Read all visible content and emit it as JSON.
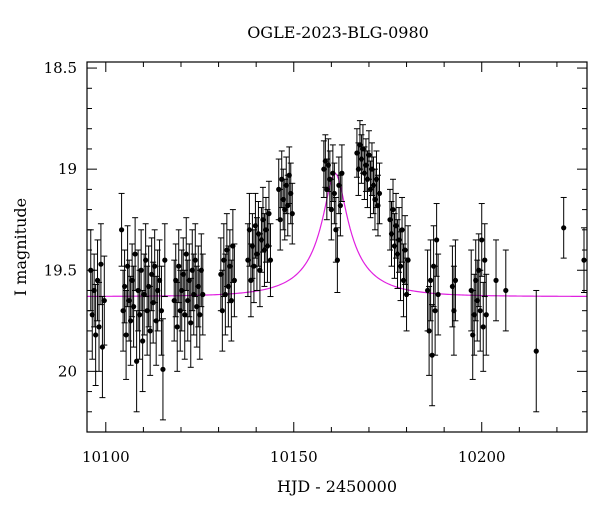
{
  "chart_data": {
    "type": "scatter",
    "title": "OGLE-2023-BLG-0980",
    "xlabel": "HJD - 2450000",
    "ylabel": "I magnitude",
    "xlim": [
      10095,
      10228
    ],
    "ylim": [
      20.3,
      18.47
    ],
    "y_inverted": true,
    "grid": false,
    "x_ticks": [
      10100,
      10150,
      10200
    ],
    "y_ticks": [
      18.5,
      19,
      19.5,
      20
    ],
    "x_tick_labels": [
      "10100",
      "10150",
      "10200"
    ],
    "y_tick_labels": [
      "18.5",
      "19",
      "19.5",
      "20"
    ],
    "colors": {
      "data": "#000000",
      "model": "#e020e0"
    },
    "series": [
      {
        "kind": "points_with_errorbars",
        "points": [
          {
            "x": 10096.0,
            "y": 19.5,
            "e": 0.2
          },
          {
            "x": 10096.4,
            "y": 19.72,
            "e": 0.22
          },
          {
            "x": 10096.9,
            "y": 19.6,
            "e": 0.18
          },
          {
            "x": 10097.3,
            "y": 19.82,
            "e": 0.25
          },
          {
            "x": 10097.8,
            "y": 19.55,
            "e": 0.2
          },
          {
            "x": 10098.2,
            "y": 19.78,
            "e": 0.22
          },
          {
            "x": 10098.7,
            "y": 19.47,
            "e": 0.2
          },
          {
            "x": 10099.1,
            "y": 19.88,
            "e": 0.25
          },
          {
            "x": 10099.6,
            "y": 19.65,
            "e": 0.22
          },
          {
            "x": 10104.2,
            "y": 19.3,
            "e": 0.18
          },
          {
            "x": 10104.6,
            "y": 19.7,
            "e": 0.2
          },
          {
            "x": 10105.0,
            "y": 19.58,
            "e": 0.18
          },
          {
            "x": 10105.4,
            "y": 19.82,
            "e": 0.22
          },
          {
            "x": 10105.8,
            "y": 19.48,
            "e": 0.2
          },
          {
            "x": 10106.2,
            "y": 19.65,
            "e": 0.2
          },
          {
            "x": 10106.6,
            "y": 19.75,
            "e": 0.22
          },
          {
            "x": 10107.0,
            "y": 19.55,
            "e": 0.18
          },
          {
            "x": 10107.4,
            "y": 19.68,
            "e": 0.2
          },
          {
            "x": 10107.8,
            "y": 19.42,
            "e": 0.18
          },
          {
            "x": 10108.2,
            "y": 19.95,
            "e": 0.25
          },
          {
            "x": 10108.6,
            "y": 19.6,
            "e": 0.2
          },
          {
            "x": 10109.0,
            "y": 19.72,
            "e": 0.22
          },
          {
            "x": 10109.4,
            "y": 19.5,
            "e": 0.2
          },
          {
            "x": 10109.8,
            "y": 19.85,
            "e": 0.25
          },
          {
            "x": 10110.2,
            "y": 19.62,
            "e": 0.2
          },
          {
            "x": 10110.6,
            "y": 19.45,
            "e": 0.18
          },
          {
            "x": 10111.0,
            "y": 19.7,
            "e": 0.22
          },
          {
            "x": 10111.4,
            "y": 19.58,
            "e": 0.2
          },
          {
            "x": 10111.8,
            "y": 19.8,
            "e": 0.22
          },
          {
            "x": 10112.2,
            "y": 19.52,
            "e": 0.18
          },
          {
            "x": 10112.6,
            "y": 19.66,
            "e": 0.2
          },
          {
            "x": 10113.0,
            "y": 19.48,
            "e": 0.18
          },
          {
            "x": 10113.4,
            "y": 19.75,
            "e": 0.22
          },
          {
            "x": 10113.8,
            "y": 19.6,
            "e": 0.2
          },
          {
            "x": 10114.3,
            "y": 19.55,
            "e": 0.2
          },
          {
            "x": 10114.8,
            "y": 19.7,
            "e": 0.22
          },
          {
            "x": 10115.2,
            "y": 19.99,
            "e": 0.25
          },
          {
            "x": 10115.7,
            "y": 19.45,
            "e": 0.18
          },
          {
            "x": 10118.2,
            "y": 19.65,
            "e": 0.2
          },
          {
            "x": 10118.6,
            "y": 19.55,
            "e": 0.18
          },
          {
            "x": 10119.0,
            "y": 19.78,
            "e": 0.22
          },
          {
            "x": 10119.4,
            "y": 19.48,
            "e": 0.18
          },
          {
            "x": 10119.8,
            "y": 19.7,
            "e": 0.2
          },
          {
            "x": 10120.2,
            "y": 19.6,
            "e": 0.2
          },
          {
            "x": 10120.6,
            "y": 19.52,
            "e": 0.18
          },
          {
            "x": 10121.0,
            "y": 19.72,
            "e": 0.22
          },
          {
            "x": 10121.4,
            "y": 19.42,
            "e": 0.18
          },
          {
            "x": 10121.8,
            "y": 19.65,
            "e": 0.2
          },
          {
            "x": 10122.2,
            "y": 19.55,
            "e": 0.18
          },
          {
            "x": 10122.6,
            "y": 19.76,
            "e": 0.22
          },
          {
            "x": 10123.0,
            "y": 19.5,
            "e": 0.2
          },
          {
            "x": 10123.4,
            "y": 19.62,
            "e": 0.2
          },
          {
            "x": 10123.8,
            "y": 19.45,
            "e": 0.18
          },
          {
            "x": 10124.2,
            "y": 19.68,
            "e": 0.2
          },
          {
            "x": 10124.6,
            "y": 19.58,
            "e": 0.2
          },
          {
            "x": 10125.0,
            "y": 19.72,
            "e": 0.22
          },
          {
            "x": 10125.4,
            "y": 19.5,
            "e": 0.18
          },
          {
            "x": 10125.8,
            "y": 19.62,
            "e": 0.2
          },
          {
            "x": 10130.6,
            "y": 19.52,
            "e": 0.18
          },
          {
            "x": 10131.0,
            "y": 19.7,
            "e": 0.2
          },
          {
            "x": 10131.4,
            "y": 19.45,
            "e": 0.18
          },
          {
            "x": 10131.8,
            "y": 19.62,
            "e": 0.2
          },
          {
            "x": 10132.2,
            "y": 19.4,
            "e": 0.18
          },
          {
            "x": 10132.6,
            "y": 19.58,
            "e": 0.2
          },
          {
            "x": 10133.0,
            "y": 19.48,
            "e": 0.18
          },
          {
            "x": 10133.4,
            "y": 19.65,
            "e": 0.2
          },
          {
            "x": 10133.8,
            "y": 19.38,
            "e": 0.18
          },
          {
            "x": 10134.2,
            "y": 19.55,
            "e": 0.18
          },
          {
            "x": 10137.8,
            "y": 19.45,
            "e": 0.18
          },
          {
            "x": 10138.2,
            "y": 19.3,
            "e": 0.18
          },
          {
            "x": 10138.6,
            "y": 19.55,
            "e": 0.18
          },
          {
            "x": 10139.0,
            "y": 19.38,
            "e": 0.16
          },
          {
            "x": 10139.4,
            "y": 19.48,
            "e": 0.18
          },
          {
            "x": 10139.8,
            "y": 19.28,
            "e": 0.16
          },
          {
            "x": 10140.2,
            "y": 19.42,
            "e": 0.18
          },
          {
            "x": 10140.6,
            "y": 19.32,
            "e": 0.16
          },
          {
            "x": 10141.0,
            "y": 19.5,
            "e": 0.18
          },
          {
            "x": 10141.4,
            "y": 19.35,
            "e": 0.16
          },
          {
            "x": 10141.8,
            "y": 19.25,
            "e": 0.16
          },
          {
            "x": 10142.2,
            "y": 19.4,
            "e": 0.18
          },
          {
            "x": 10142.6,
            "y": 19.3,
            "e": 0.16
          },
          {
            "x": 10143.0,
            "y": 19.38,
            "e": 0.18
          },
          {
            "x": 10143.4,
            "y": 19.22,
            "e": 0.16
          },
          {
            "x": 10143.8,
            "y": 19.45,
            "e": 0.18
          },
          {
            "x": 10146.0,
            "y": 19.1,
            "e": 0.15
          },
          {
            "x": 10146.4,
            "y": 19.25,
            "e": 0.15
          },
          {
            "x": 10146.8,
            "y": 19.05,
            "e": 0.14
          },
          {
            "x": 10147.2,
            "y": 19.15,
            "e": 0.15
          },
          {
            "x": 10147.6,
            "y": 19.2,
            "e": 0.15
          },
          {
            "x": 10148.0,
            "y": 19.08,
            "e": 0.14
          },
          {
            "x": 10148.4,
            "y": 19.18,
            "e": 0.15
          },
          {
            "x": 10148.8,
            "y": 19.03,
            "e": 0.14
          },
          {
            "x": 10149.2,
            "y": 19.12,
            "e": 0.15
          },
          {
            "x": 10149.6,
            "y": 19.22,
            "e": 0.15
          },
          {
            "x": 10158.0,
            "y": 19.0,
            "e": 0.14
          },
          {
            "x": 10158.4,
            "y": 18.96,
            "e": 0.13
          },
          {
            "x": 10158.8,
            "y": 19.1,
            "e": 0.15
          },
          {
            "x": 10159.2,
            "y": 18.98,
            "e": 0.13
          },
          {
            "x": 10159.6,
            "y": 19.05,
            "e": 0.14
          },
          {
            "x": 10160.0,
            "y": 19.2,
            "e": 0.15
          },
          {
            "x": 10160.4,
            "y": 19.02,
            "e": 0.14
          },
          {
            "x": 10160.8,
            "y": 19.12,
            "e": 0.15
          },
          {
            "x": 10161.2,
            "y": 19.3,
            "e": 0.16
          },
          {
            "x": 10161.6,
            "y": 19.45,
            "e": 0.16
          },
          {
            "x": 10162.0,
            "y": 19.08,
            "e": 0.14
          },
          {
            "x": 10162.4,
            "y": 19.18,
            "e": 0.15
          },
          {
            "x": 10162.8,
            "y": 19.02,
            "e": 0.14
          },
          {
            "x": 10166.8,
            "y": 18.92,
            "e": 0.12
          },
          {
            "x": 10167.2,
            "y": 19.0,
            "e": 0.13
          },
          {
            "x": 10167.6,
            "y": 18.88,
            "e": 0.12
          },
          {
            "x": 10168.0,
            "y": 18.95,
            "e": 0.12
          },
          {
            "x": 10168.4,
            "y": 18.9,
            "e": 0.12
          },
          {
            "x": 10168.8,
            "y": 19.02,
            "e": 0.13
          },
          {
            "x": 10169.2,
            "y": 18.98,
            "e": 0.13
          },
          {
            "x": 10169.6,
            "y": 19.05,
            "e": 0.14
          },
          {
            "x": 10170.0,
            "y": 18.93,
            "e": 0.12
          },
          {
            "x": 10170.4,
            "y": 19.1,
            "e": 0.14
          },
          {
            "x": 10170.8,
            "y": 19.0,
            "e": 0.13
          },
          {
            "x": 10171.2,
            "y": 19.08,
            "e": 0.14
          },
          {
            "x": 10171.6,
            "y": 19.15,
            "e": 0.15
          },
          {
            "x": 10172.0,
            "y": 19.05,
            "e": 0.14
          },
          {
            "x": 10172.4,
            "y": 19.18,
            "e": 0.15
          },
          {
            "x": 10172.8,
            "y": 19.12,
            "e": 0.15
          },
          {
            "x": 10175.6,
            "y": 19.25,
            "e": 0.15
          },
          {
            "x": 10176.0,
            "y": 19.32,
            "e": 0.16
          },
          {
            "x": 10176.4,
            "y": 19.2,
            "e": 0.15
          },
          {
            "x": 10176.8,
            "y": 19.38,
            "e": 0.16
          },
          {
            "x": 10177.2,
            "y": 19.28,
            "e": 0.16
          },
          {
            "x": 10177.6,
            "y": 19.42,
            "e": 0.17
          },
          {
            "x": 10178.0,
            "y": 19.35,
            "e": 0.16
          },
          {
            "x": 10178.4,
            "y": 19.48,
            "e": 0.17
          },
          {
            "x": 10178.8,
            "y": 19.3,
            "e": 0.16
          },
          {
            "x": 10179.2,
            "y": 19.55,
            "e": 0.18
          },
          {
            "x": 10179.6,
            "y": 19.4,
            "e": 0.17
          },
          {
            "x": 10180.0,
            "y": 19.62,
            "e": 0.18
          },
          {
            "x": 10180.4,
            "y": 19.45,
            "e": 0.17
          },
          {
            "x": 10185.6,
            "y": 19.6,
            "e": 0.2
          },
          {
            "x": 10186.0,
            "y": 19.8,
            "e": 0.22
          },
          {
            "x": 10186.4,
            "y": 19.55,
            "e": 0.2
          },
          {
            "x": 10186.8,
            "y": 19.92,
            "e": 0.25
          },
          {
            "x": 10187.2,
            "y": 19.48,
            "e": 0.2
          },
          {
            "x": 10187.6,
            "y": 19.7,
            "e": 0.22
          },
          {
            "x": 10188.0,
            "y": 19.35,
            "e": 0.18
          },
          {
            "x": 10188.4,
            "y": 19.62,
            "e": 0.2
          },
          {
            "x": 10192.2,
            "y": 19.58,
            "e": 0.2
          },
          {
            "x": 10192.6,
            "y": 19.7,
            "e": 0.22
          },
          {
            "x": 10193.0,
            "y": 19.55,
            "e": 0.2
          },
          {
            "x": 10197.2,
            "y": 19.6,
            "e": 0.2
          },
          {
            "x": 10197.6,
            "y": 19.82,
            "e": 0.22
          },
          {
            "x": 10198.0,
            "y": 19.72,
            "e": 0.2
          },
          {
            "x": 10198.4,
            "y": 19.55,
            "e": 0.2
          },
          {
            "x": 10198.8,
            "y": 19.65,
            "e": 0.2
          },
          {
            "x": 10199.2,
            "y": 19.5,
            "e": 0.18
          },
          {
            "x": 10199.6,
            "y": 19.7,
            "e": 0.2
          },
          {
            "x": 10200.0,
            "y": 19.35,
            "e": 0.18
          },
          {
            "x": 10200.4,
            "y": 19.78,
            "e": 0.22
          },
          {
            "x": 10200.8,
            "y": 19.45,
            "e": 0.18
          },
          {
            "x": 10201.2,
            "y": 19.72,
            "e": 0.2
          },
          {
            "x": 10203.8,
            "y": 19.55,
            "e": 0.2
          },
          {
            "x": 10206.4,
            "y": 19.6,
            "e": 0.2
          },
          {
            "x": 10214.5,
            "y": 19.9,
            "e": 0.3
          },
          {
            "x": 10221.8,
            "y": 19.29,
            "e": 0.15
          },
          {
            "x": 10227.2,
            "y": 19.45,
            "e": 0.16
          }
        ]
      },
      {
        "kind": "model_curve",
        "model": {
          "t0": 10161.0,
          "tE": 16.0,
          "u0": 0.2,
          "baseline": 19.63,
          "amplitude": 0.61
        }
      }
    ]
  }
}
